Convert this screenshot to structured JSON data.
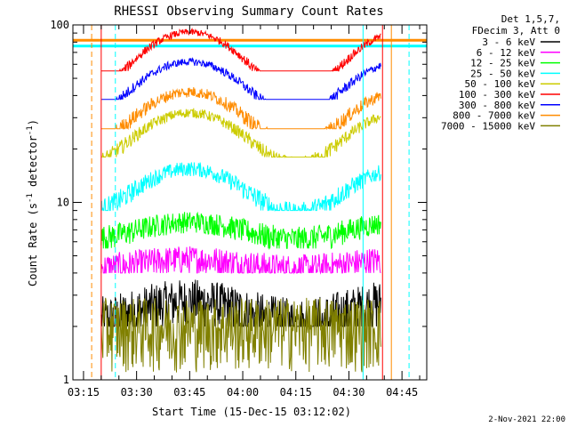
{
  "chart_data": {
    "type": "line",
    "title": "RHESSI Observing Summary Count Rates",
    "xlabel": "Start Time (15-Dec-15 03:12:02)",
    "ylabel_parts": [
      "Count Rate (s",
      "-1",
      " detector",
      "-1",
      ")"
    ],
    "footer_date": "2-Nov-2021 22:00",
    "y_scale": "log",
    "ylim": [
      1,
      100
    ],
    "y_ticks": [
      {
        "value": 1,
        "label": "1"
      },
      {
        "value": 10,
        "label": "10"
      },
      {
        "value": 100,
        "label": "100"
      }
    ],
    "x_unit": "minutes since 03:12:02",
    "xlim": [
      0,
      100
    ],
    "x_ticks": [
      {
        "value": 3,
        "label": "03:15"
      },
      {
        "value": 18,
        "label": "03:30"
      },
      {
        "value": 33,
        "label": "03:45"
      },
      {
        "value": 48,
        "label": "04:00"
      },
      {
        "value": 63,
        "label": "04:15"
      },
      {
        "value": 78,
        "label": "04:30"
      },
      {
        "value": 93,
        "label": "04:45"
      }
    ],
    "legend_header": [
      "Det 1,5,7,",
      "FDecim 3, Att 0"
    ],
    "legend_position": "right",
    "series": [
      {
        "name": "3 - 6 keV",
        "color": "#000000",
        "base": 2.4,
        "amp": 0.4,
        "noise": 0.9,
        "clip_low": 2.0,
        "clip_high": 4.0
      },
      {
        "name": "6 - 12 keV",
        "color": "#ff00ff",
        "base": 4.5,
        "amp": 0.3,
        "noise": 0.9,
        "clip_low": 4.0,
        "clip_high": 6.0
      },
      {
        "name": "12 - 25 keV",
        "color": "#00ff00",
        "base": 7.0,
        "amp": 0.8,
        "noise": 1.1,
        "clip_low": 5.5,
        "clip_high": 9.5
      },
      {
        "name": "25 - 50 keV",
        "color": "#00ffff",
        "base": 12.0,
        "amp": 3.5,
        "noise": 1.5,
        "clip_low": 9.0,
        "clip_high": 20.0
      },
      {
        "name": "50 - 100 keV",
        "color": "#cccc00",
        "base": 24.0,
        "amp": 8.0,
        "noise": 2.0,
        "clip_low": 18.0,
        "clip_high": 40.0
      },
      {
        "name": "100 - 300 keV",
        "color": "#ff0000",
        "base": 65.0,
        "amp": 26.0,
        "noise": 4.0,
        "clip_low": 55.0,
        "clip_high": 100.0
      },
      {
        "name": "300 - 800 keV",
        "color": "#0000ff",
        "base": 46.0,
        "amp": 16.0,
        "noise": 3.0,
        "clip_low": 38.0,
        "clip_high": 70.0
      },
      {
        "name": "800 - 7000 keV",
        "color": "#ff8c00",
        "base": 31.0,
        "amp": 11.0,
        "noise": 3.0,
        "clip_low": 26.0,
        "clip_high": 52.0
      },
      {
        "name": "7000 - 15000 keV",
        "color": "#808000",
        "base": 2.0,
        "amp": 0.0,
        "noise": 0.9,
        "clip_low": 1.0,
        "clip_high": 3.0
      }
    ],
    "data_range_minutes": [
      8,
      87
    ],
    "saa_levels": [
      {
        "color": "#ff8c00",
        "value": 82
      },
      {
        "color": "#00ffff",
        "value": 76
      }
    ],
    "vertical_markers": [
      {
        "minute": 5.3,
        "color": "#ff8c00",
        "style": "dashed"
      },
      {
        "minute": 8.0,
        "color": "#ff0000",
        "style": "solid"
      },
      {
        "minute": 12.0,
        "color": "#00ffff",
        "style": "dashed"
      },
      {
        "minute": 82.0,
        "color": "#00ffff",
        "style": "solid"
      },
      {
        "minute": 87.5,
        "color": "#ff0000",
        "style": "solid"
      },
      {
        "minute": 90.0,
        "color": "#ff8c00",
        "style": "solid"
      },
      {
        "minute": 95.0,
        "color": "#00ffff",
        "style": "dashed"
      }
    ]
  }
}
